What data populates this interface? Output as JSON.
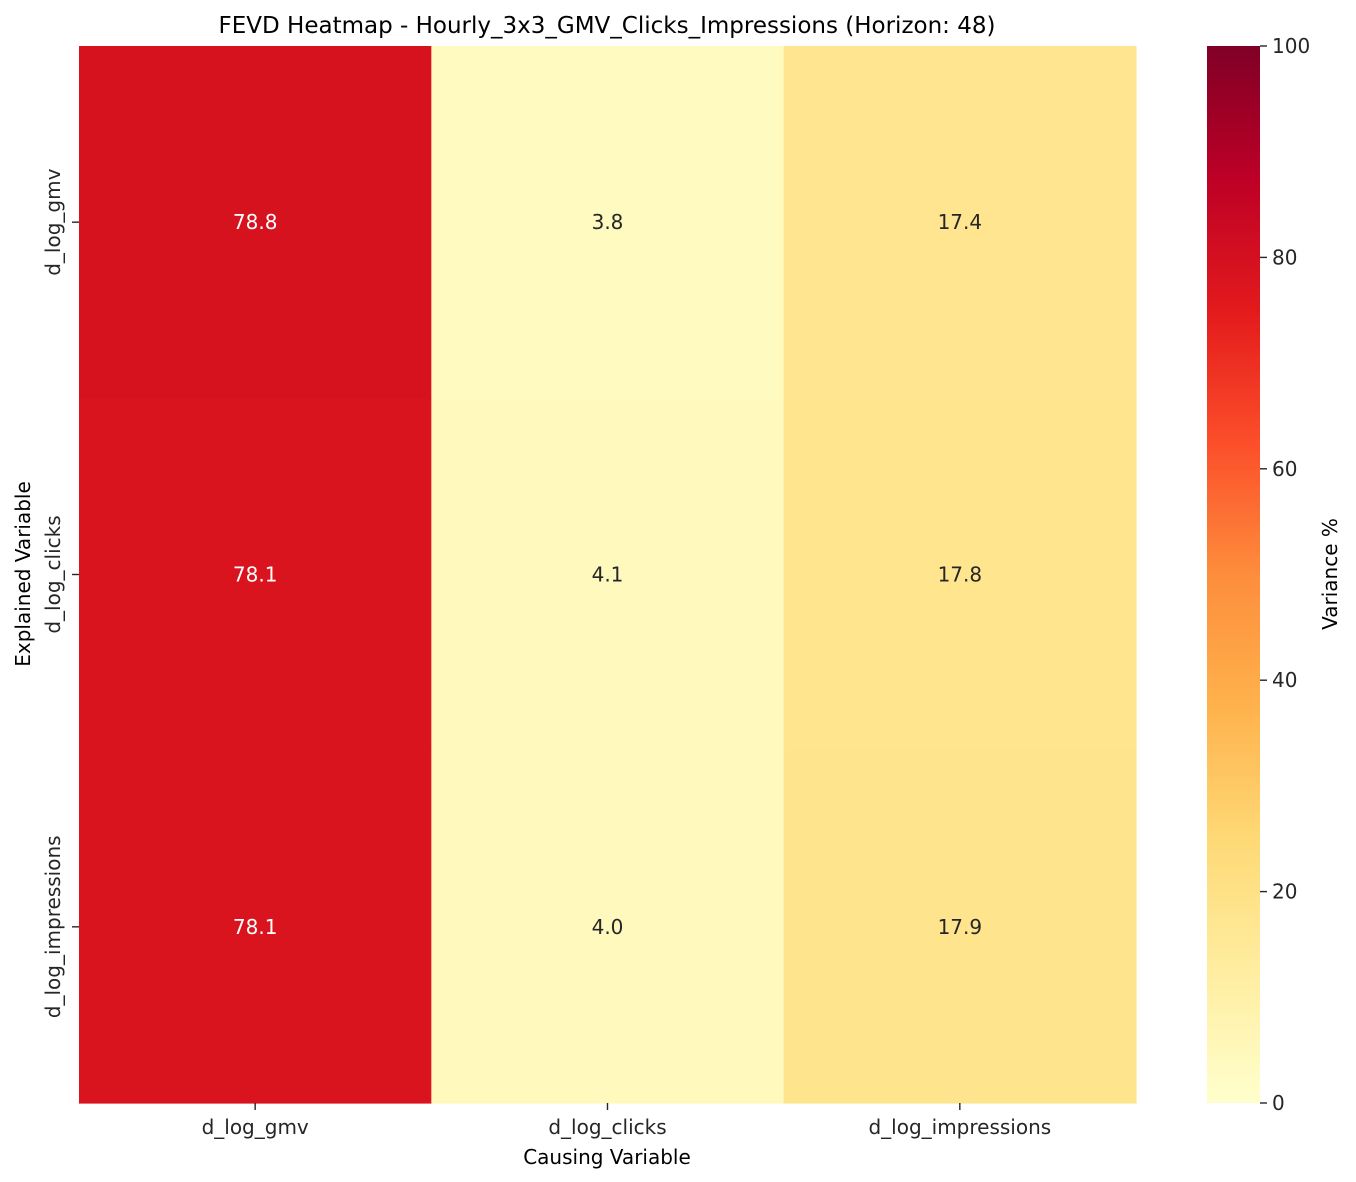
{
  "chart_data": {
    "type": "heatmap",
    "title": "FEVD Heatmap - Hourly_3x3_GMV_Clicks_Impressions (Horizon: 48)",
    "xlabel": "Causing Variable",
    "ylabel": "Explained Variable",
    "x_categories": [
      "d_log_gmv",
      "d_log_clicks",
      "d_log_impressions"
    ],
    "y_categories": [
      "d_log_gmv",
      "d_log_clicks",
      "d_log_impressions"
    ],
    "values": [
      [
        78.8,
        3.8,
        17.4
      ],
      [
        78.1,
        4.1,
        17.8
      ],
      [
        78.1,
        4.0,
        17.9
      ]
    ],
    "value_labels": [
      [
        "78.8",
        "3.8",
        "17.4"
      ],
      [
        "78.1",
        "4.1",
        "17.8"
      ],
      [
        "78.1",
        "4.0",
        "17.9"
      ]
    ],
    "colorbar": {
      "label": "Variance %",
      "range": [
        0,
        100
      ],
      "ticks": [
        "0",
        "20",
        "40",
        "60",
        "80",
        "100"
      ],
      "colormap": "YlOrRd"
    },
    "colormap_stops": [
      "#ffffcc",
      "#ffeda0",
      "#fed976",
      "#feb24c",
      "#fd8d3c",
      "#fc4e2a",
      "#e31a1c",
      "#bd0026",
      "#800026"
    ]
  }
}
